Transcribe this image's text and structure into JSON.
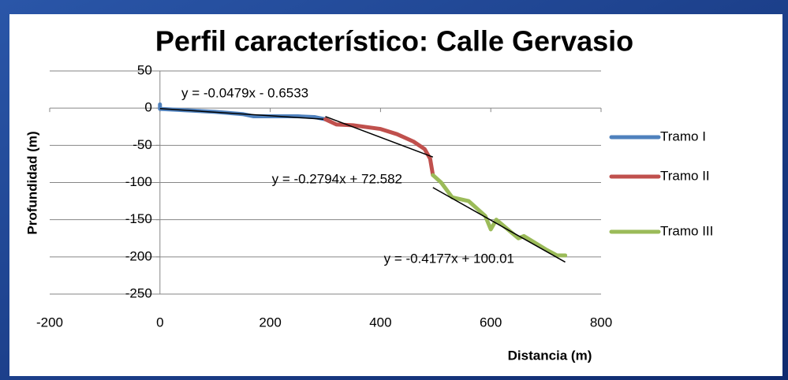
{
  "chart_data": {
    "type": "line",
    "title": "Perfil característico: Calle Gervasio",
    "x_label": "Distancia  (m)",
    "y_label": "Profundidad (m)",
    "xlim": [
      -200,
      800
    ],
    "xticks": [
      -200,
      0,
      200,
      400,
      600,
      800
    ],
    "ylim": [
      -250,
      50
    ],
    "yticks": [
      -250,
      -200,
      -150,
      -100,
      -50,
      0,
      50
    ],
    "grid": true,
    "legend": "right",
    "series": [
      {
        "name": "Tramo I",
        "color": "#4f81bd",
        "x": [
          0,
          0,
          50,
          100,
          150,
          170,
          200,
          250,
          280,
          300
        ],
        "values": [
          5,
          -1,
          -3,
          -5,
          -8,
          -11,
          -11,
          -11,
          -12,
          -15
        ],
        "trendline": {
          "label": "y = -0.0479x - 0.6533",
          "slope": -0.0479,
          "intercept": -0.6533
        }
      },
      {
        "name": "Tramo II",
        "color": "#c0504d",
        "x": [
          300,
          320,
          350,
          400,
          430,
          460,
          480,
          490,
          495
        ],
        "values": [
          -15,
          -22,
          -23,
          -28,
          -35,
          -45,
          -55,
          -68,
          -90
        ],
        "trendline": {
          "label": "y = -0.2794x + 72.582",
          "slope": -0.2794,
          "intercept": 72.582
        }
      },
      {
        "name": "Tramo III",
        "color": "#9bbb59",
        "x": [
          495,
          510,
          530,
          560,
          590,
          600,
          610,
          650,
          660,
          700,
          720,
          735
        ],
        "values": [
          -90,
          -100,
          -120,
          -125,
          -145,
          -163,
          -150,
          -175,
          -172,
          -190,
          -198,
          -198
        ],
        "trendline": {
          "label": "y = -0.4177x + 100.01",
          "slope": -0.4177,
          "intercept": 100.01
        }
      }
    ]
  }
}
